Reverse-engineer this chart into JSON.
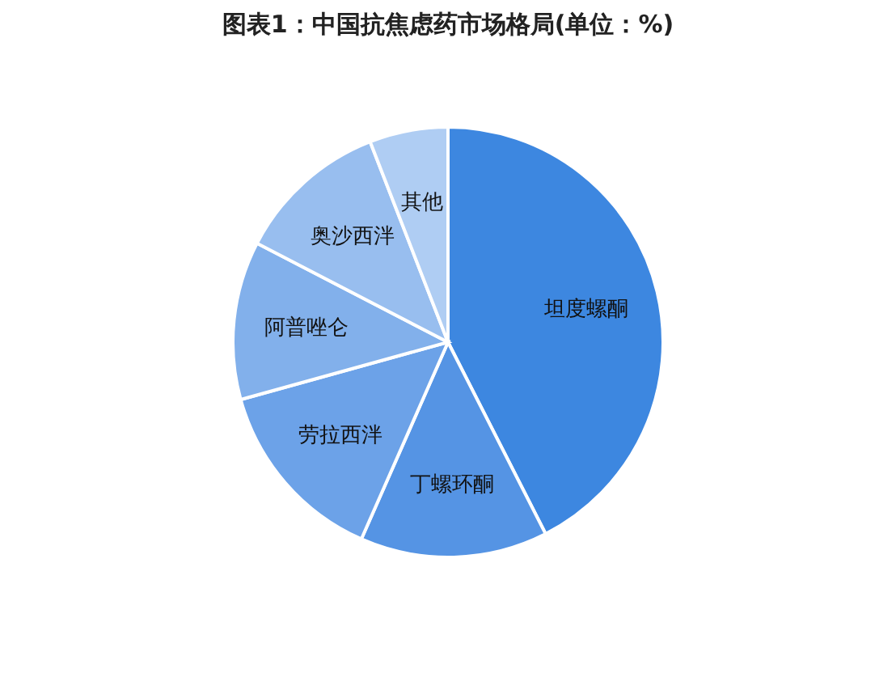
{
  "chart_data": {
    "type": "pie",
    "title": "图表1：中国抗焦虑药市场格局(单位：%)",
    "categories": [
      "坦度螺酮",
      "丁螺环酮",
      "劳拉西泮",
      "阿普唑仑",
      "奥沙西泮",
      "其他"
    ],
    "values": [
      42.5,
      14.1,
      14.1,
      11.9,
      11.5,
      5.9
    ],
    "colors": [
      "#3d87e0",
      "#5594e4",
      "#6ca2e8",
      "#82b0eb",
      "#98beef",
      "#afcdf3"
    ]
  }
}
